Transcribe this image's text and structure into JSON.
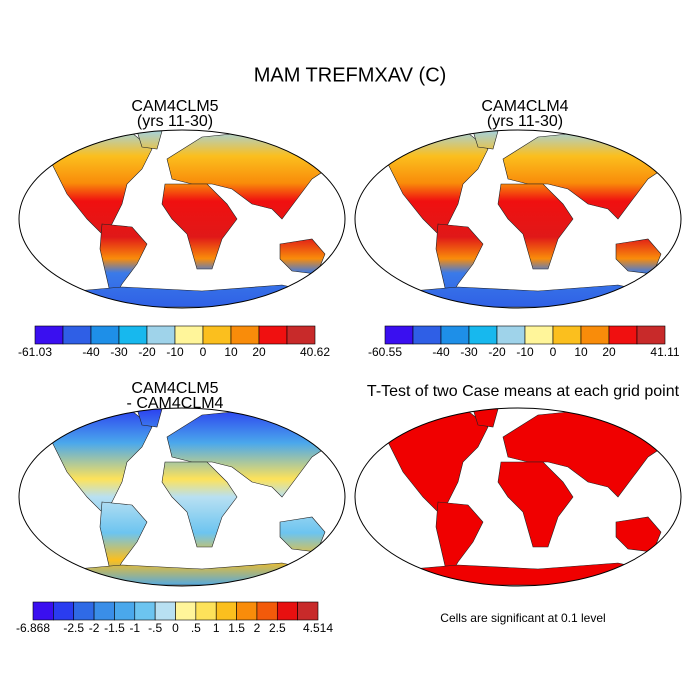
{
  "title": "MAM TREFMXAV (C)",
  "panels": [
    {
      "title": [
        "CAM4CLM5",
        "(yrs 11-30)"
      ],
      "colorbar": {
        "levels": [
          -61.03,
          null,
          -40,
          -30,
          -20,
          -10,
          0,
          10,
          20,
          null,
          40.62
        ],
        "colors": [
          "#3a0ff0",
          "#2f5fe6",
          "#1e8fe8",
          "#17b8ee",
          "#9fd3ea",
          "#fff59a",
          "#fbbf1e",
          "#f98c0a",
          "#f01010",
          "#c82a2a"
        ]
      }
    },
    {
      "title": [
        "CAM4CLM4",
        "(yrs 11-30)"
      ],
      "colorbar": {
        "levels": [
          -60.55,
          null,
          -40,
          -30,
          -20,
          -10,
          0,
          10,
          20,
          null,
          41.11
        ],
        "colors": [
          "#3a0ff0",
          "#2f5fe6",
          "#1e8fe8",
          "#17b8ee",
          "#9fd3ea",
          "#fff59a",
          "#fbbf1e",
          "#f98c0a",
          "#f01010",
          "#c82a2a"
        ]
      }
    },
    {
      "title": [
        "CAM4CLM5",
        "- CAM4CLM4"
      ],
      "colorbar": {
        "levels": [
          -6.868,
          null,
          -2.5,
          -2,
          -1.5,
          -1,
          {
            "value": -0.5,
            "label": "-.5"
          },
          0,
          {
            "value": 0.5,
            "label": ".5"
          },
          1,
          1.5,
          2,
          2.5,
          null,
          4.514
        ],
        "colors": [
          "#3a0ff0",
          "#2a3cf0",
          "#2f6ae6",
          "#3a8ee8",
          "#4aa8ec",
          "#6cc4f0",
          "#b8e0f2",
          "#fff59a",
          "#fde25a",
          "#fbbf1e",
          "#f98c0a",
          "#f35a0a",
          "#e81010",
          "#c82a2a"
        ]
      }
    },
    {
      "title": [
        "T-Test of two Case means at each grid point"
      ],
      "note": "Cells are significant at 0.1 level"
    }
  ]
}
